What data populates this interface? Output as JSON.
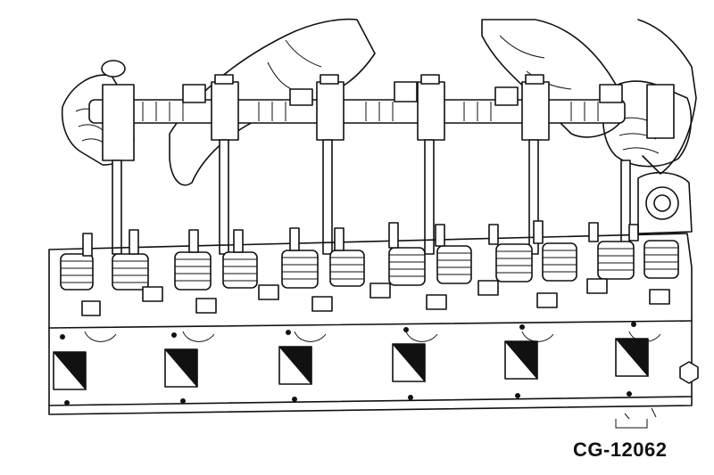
{
  "figure": {
    "code": "CG-12062"
  },
  "colors": {
    "line": "#111111",
    "background": "#ffffff"
  }
}
